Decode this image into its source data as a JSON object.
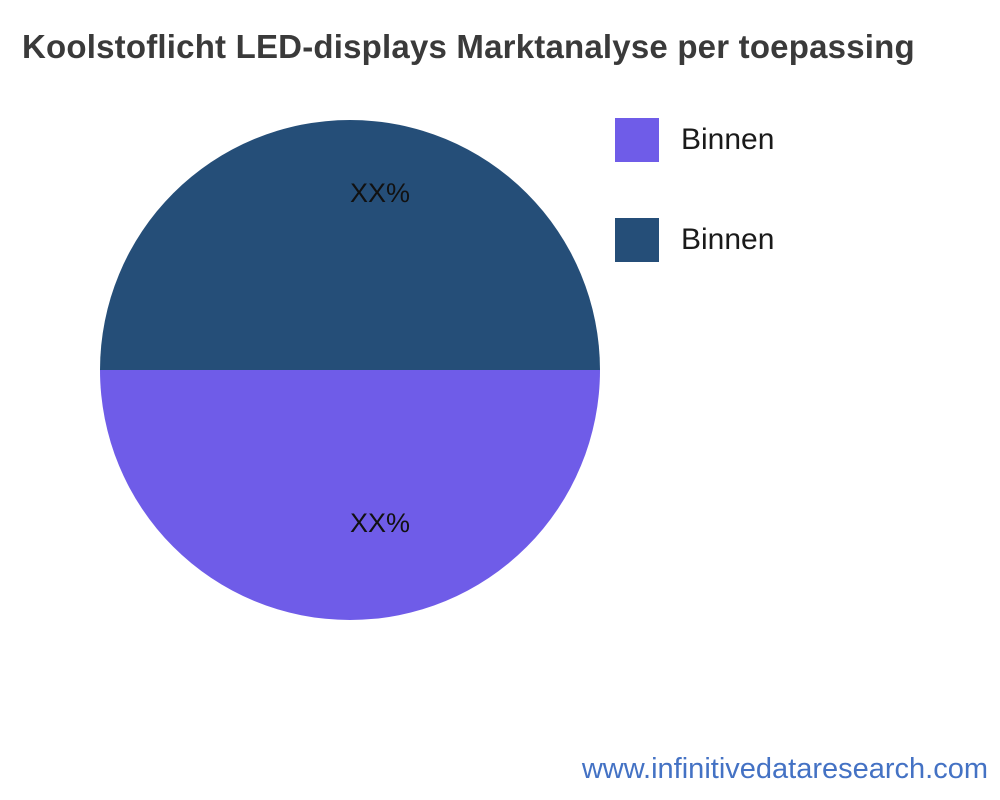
{
  "title": "Koolstoflicht LED-displays Marktanalyse per toepassing",
  "footer": {
    "url_text": "www.infinitivedataresearch.com",
    "color": "#4472c4"
  },
  "legend": {
    "position": "right",
    "items": [
      {
        "label": "Binnen",
        "color": "#6f5ce8"
      },
      {
        "label": "Binnen",
        "color": "#254e78"
      }
    ]
  },
  "chart_data": {
    "type": "pie",
    "title": "Koolstoflicht LED-displays Marktanalyse per toepassing",
    "legend_position": "right",
    "slices": [
      {
        "label": "Binnen",
        "value": 50,
        "value_label": "XX%",
        "color": "#254e78",
        "position": "top-half"
      },
      {
        "label": "Binnen",
        "value": 50,
        "value_label": "XX%",
        "color": "#6f5ce8",
        "position": "bottom-half"
      }
    ]
  }
}
